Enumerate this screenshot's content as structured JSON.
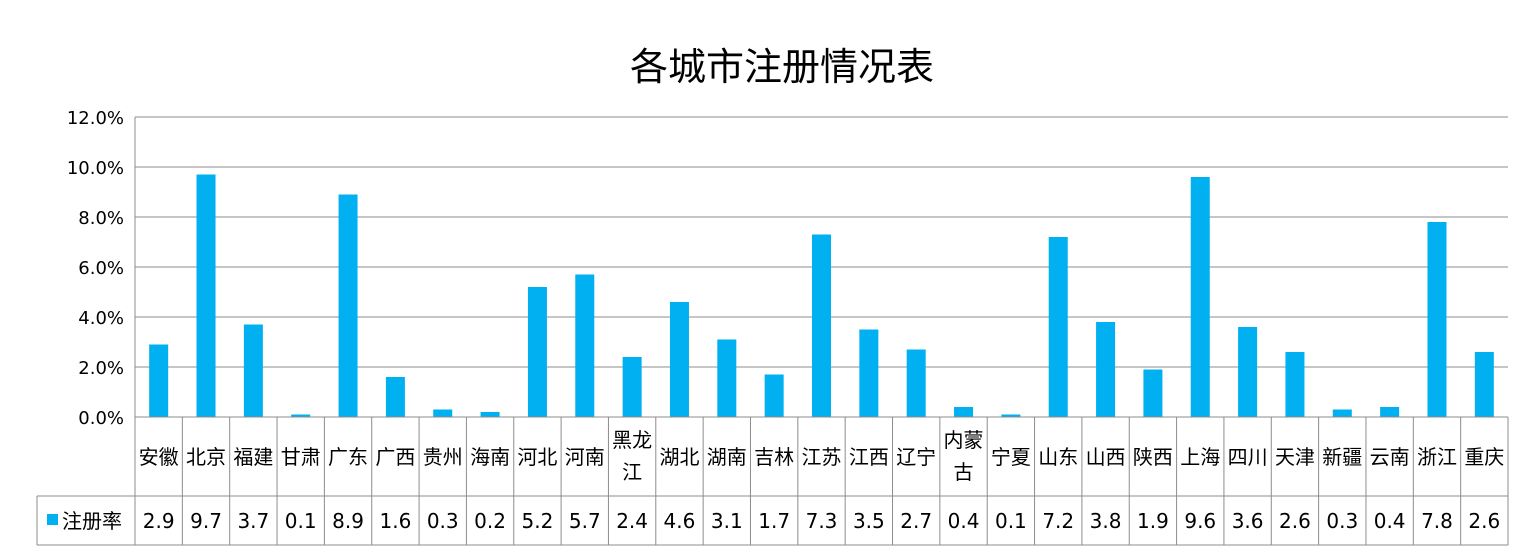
{
  "chart_data": {
    "type": "bar",
    "title": "各城市注册情况表",
    "xlabel": "",
    "ylabel": "",
    "ylim": [
      0,
      12
    ],
    "y_ticks": [
      "0.0%",
      "2.0%",
      "4.0%",
      "6.0%",
      "8.0%",
      "10.0%",
      "12.0%"
    ],
    "grid": true,
    "legend_placement": "data-table",
    "bar_color": "#00B0F0",
    "categories": [
      "安徽",
      "北京",
      "福建",
      "甘肃",
      "广东",
      "广西",
      "贵州",
      "海南",
      "河北",
      "河南",
      "黑龙江",
      "湖北",
      "湖南",
      "吉林",
      "江苏",
      "江西",
      "辽宁",
      "内蒙古",
      "宁夏",
      "山东",
      "山西",
      "陕西",
      "上海",
      "四川",
      "天津",
      "新疆",
      "云南",
      "浙江",
      "重庆"
    ],
    "series": [
      {
        "name": "注册率",
        "values": [
          2.9,
          9.7,
          3.7,
          0.1,
          8.9,
          1.6,
          0.3,
          0.2,
          5.2,
          5.7,
          2.4,
          4.6,
          3.1,
          1.7,
          7.3,
          3.5,
          2.7,
          0.4,
          0.1,
          7.2,
          3.8,
          1.9,
          9.6,
          3.6,
          2.6,
          0.3,
          0.4,
          7.8,
          2.6
        ],
        "value_labels": [
          "2.9",
          "9.7",
          "3.7",
          "0.1",
          "8.9",
          "1.6",
          "0.3",
          "0.2",
          "5.2",
          "5.7",
          "2.4",
          "4.6",
          "3.1",
          "1.7",
          "7.3",
          "3.5",
          "2.7",
          "0.4",
          "0.1",
          "7.2",
          "3.8",
          "1.9",
          "9.6",
          "3.6",
          "2.6",
          "0.3",
          "0.4",
          "7.8",
          "2.6"
        ]
      }
    ]
  }
}
